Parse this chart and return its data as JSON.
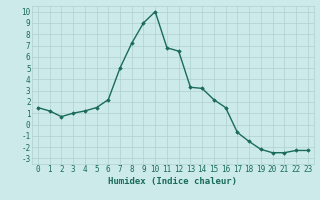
{
  "x": [
    0,
    1,
    2,
    3,
    4,
    5,
    6,
    7,
    8,
    9,
    10,
    11,
    12,
    13,
    14,
    15,
    16,
    17,
    18,
    19,
    20,
    21,
    22,
    23
  ],
  "y": [
    1.5,
    1.2,
    0.7,
    1.0,
    1.2,
    1.5,
    2.2,
    5.0,
    7.2,
    9.0,
    10.0,
    6.8,
    6.5,
    3.3,
    3.2,
    2.2,
    1.5,
    -0.7,
    -1.5,
    -2.2,
    -2.5,
    -2.5,
    -2.3,
    -2.3
  ],
  "line_color": "#1a6b5a",
  "marker": "D",
  "markersize": 1.8,
  "linewidth": 1.0,
  "xlabel": "Humidex (Indice chaleur)",
  "ylim": [
    -3.5,
    10.5
  ],
  "xlim": [
    -0.5,
    23.5
  ],
  "yticks": [
    -3,
    -2,
    -1,
    0,
    1,
    2,
    3,
    4,
    5,
    6,
    7,
    8,
    9,
    10
  ],
  "xticks": [
    0,
    1,
    2,
    3,
    4,
    5,
    6,
    7,
    8,
    9,
    10,
    11,
    12,
    13,
    14,
    15,
    16,
    17,
    18,
    19,
    20,
    21,
    22,
    23
  ],
  "background_color": "#cceaea",
  "grid_color": "#b0d0d0",
  "font_color": "#1a6b5a",
  "xlabel_fontsize": 6.5,
  "tick_fontsize": 5.5
}
